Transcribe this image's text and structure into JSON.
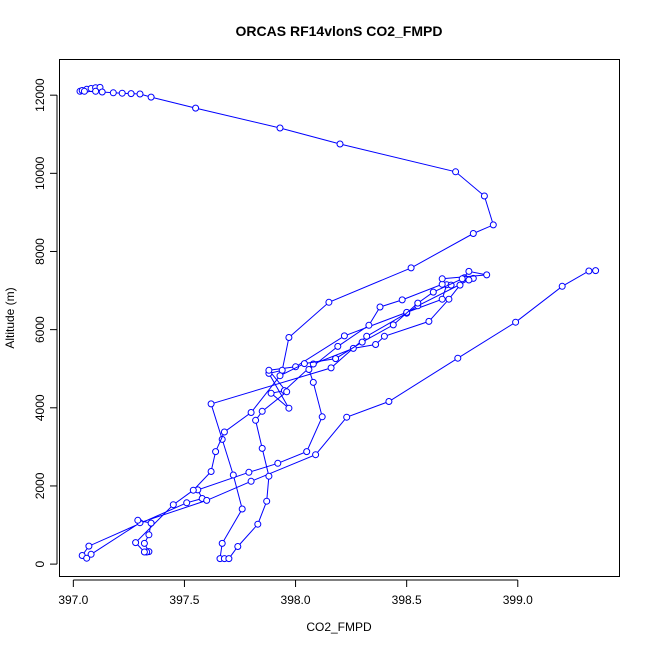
{
  "chart_data": {
    "type": "line",
    "title": "ORCAS RF14vlonS CO2_FMPD",
    "xlabel": "CO2_FMPD",
    "ylabel": "Altitude (m)",
    "xlim": [
      396.94,
      399.46
    ],
    "ylim": [
      -330,
      12900
    ],
    "x_ticks": [
      397.0,
      397.5,
      398.0,
      398.5,
      399.0
    ],
    "x_tick_labels": [
      "397.0",
      "397.5",
      "398.0",
      "398.5",
      "399.0"
    ],
    "y_ticks": [
      0,
      2000,
      4000,
      6000,
      8000,
      10000,
      12000
    ],
    "y_tick_labels": [
      "0",
      "2000",
      "4000",
      "6000",
      "8000",
      "10000",
      "12000"
    ],
    "grid": false,
    "series": [
      {
        "color": "#0000ff",
        "points": [
          [
            397.03,
            12100
          ],
          [
            397.04,
            12120
          ],
          [
            397.06,
            12150
          ],
          [
            397.08,
            12170
          ],
          [
            397.1,
            12190
          ],
          [
            397.12,
            12200
          ],
          [
            397.1,
            12100
          ],
          [
            397.05,
            12100
          ],
          [
            397.13,
            12080
          ],
          [
            397.18,
            12060
          ],
          [
            397.22,
            12050
          ],
          [
            397.26,
            12040
          ],
          [
            397.3,
            12030
          ],
          [
            397.35,
            11950
          ],
          [
            397.55,
            11670
          ],
          [
            397.93,
            11160
          ],
          [
            398.2,
            10750
          ],
          [
            398.72,
            10040
          ],
          [
            398.85,
            9420
          ],
          [
            398.89,
            8680
          ],
          [
            398.8,
            8460
          ],
          [
            398.52,
            7580
          ],
          [
            398.15,
            6700
          ],
          [
            397.97,
            5800
          ],
          [
            397.94,
            4960
          ],
          [
            397.88,
            4880
          ],
          [
            397.97,
            3990
          ],
          [
            397.89,
            4370
          ],
          [
            397.95,
            4440
          ],
          [
            398.08,
            5120
          ],
          [
            398.26,
            5520
          ],
          [
            398.36,
            5620
          ],
          [
            398.4,
            5830
          ],
          [
            398.6,
            6210
          ],
          [
            398.69,
            6780
          ],
          [
            398.74,
            7140
          ],
          [
            398.76,
            7330
          ],
          [
            398.8,
            7310
          ],
          [
            398.78,
            7270
          ],
          [
            398.55,
            6610
          ],
          [
            398.5,
            6420
          ],
          [
            398.32,
            5830
          ],
          [
            398.16,
            5020
          ],
          [
            397.62,
            4100
          ],
          [
            397.67,
            3190
          ],
          [
            397.72,
            2280
          ],
          [
            397.76,
            1410
          ],
          [
            397.67,
            530
          ],
          [
            397.66,
            140
          ],
          [
            397.68,
            140
          ],
          [
            397.7,
            140
          ],
          [
            397.74,
            450
          ],
          [
            397.83,
            1020
          ],
          [
            397.87,
            1610
          ],
          [
            397.88,
            2250
          ],
          [
            397.85,
            2960
          ],
          [
            397.82,
            3680
          ],
          [
            397.85,
            3910
          ],
          [
            397.96,
            4410
          ],
          [
            397.88,
            4960
          ],
          [
            398.0,
            5050
          ],
          [
            398.22,
            5840
          ],
          [
            398.5,
            6440
          ],
          [
            398.66,
            6780
          ],
          [
            398.68,
            7150
          ],
          [
            398.7,
            7140
          ],
          [
            398.66,
            7160
          ],
          [
            398.48,
            6760
          ],
          [
            398.38,
            6580
          ],
          [
            398.33,
            6110
          ],
          [
            398.19,
            5570
          ],
          [
            398.06,
            4980
          ],
          [
            398.08,
            4650
          ],
          [
            398.12,
            3770
          ],
          [
            398.05,
            2880
          ],
          [
            397.92,
            2580
          ],
          [
            397.79,
            2350
          ],
          [
            397.56,
            1900
          ],
          [
            397.58,
            1680
          ],
          [
            397.51,
            1570
          ],
          [
            397.07,
            460
          ],
          [
            397.04,
            220
          ],
          [
            397.06,
            150
          ],
          [
            397.08,
            250
          ],
          [
            397.3,
            1060
          ],
          [
            397.6,
            1630
          ],
          [
            397.8,
            2120
          ],
          [
            398.09,
            2800
          ],
          [
            398.23,
            3760
          ],
          [
            398.42,
            4160
          ],
          [
            398.73,
            5270
          ],
          [
            398.99,
            6190
          ],
          [
            399.2,
            7110
          ],
          [
            399.32,
            7500
          ],
          [
            399.35,
            7510
          ]
        ]
      },
      {
        "color": "#0000ff",
        "points": [
          [
            397.29,
            1120
          ],
          [
            397.35,
            1050
          ],
          [
            397.34,
            750
          ],
          [
            397.32,
            530
          ],
          [
            397.34,
            320
          ],
          [
            397.33,
            310
          ],
          [
            397.32,
            310
          ],
          [
            397.28,
            550
          ],
          [
            397.45,
            1520
          ],
          [
            397.54,
            1890
          ],
          [
            397.62,
            2370
          ],
          [
            397.64,
            2880
          ],
          [
            397.68,
            3380
          ],
          [
            397.8,
            3880
          ],
          [
            397.93,
            4820
          ],
          [
            398.04,
            5130
          ],
          [
            398.18,
            5260
          ],
          [
            398.3,
            5680
          ],
          [
            398.44,
            6120
          ],
          [
            398.55,
            6680
          ],
          [
            398.62,
            6960
          ],
          [
            398.75,
            7300
          ],
          [
            398.78,
            7490
          ],
          [
            398.86,
            7400
          ],
          [
            398.66,
            7300
          ]
        ]
      }
    ]
  }
}
